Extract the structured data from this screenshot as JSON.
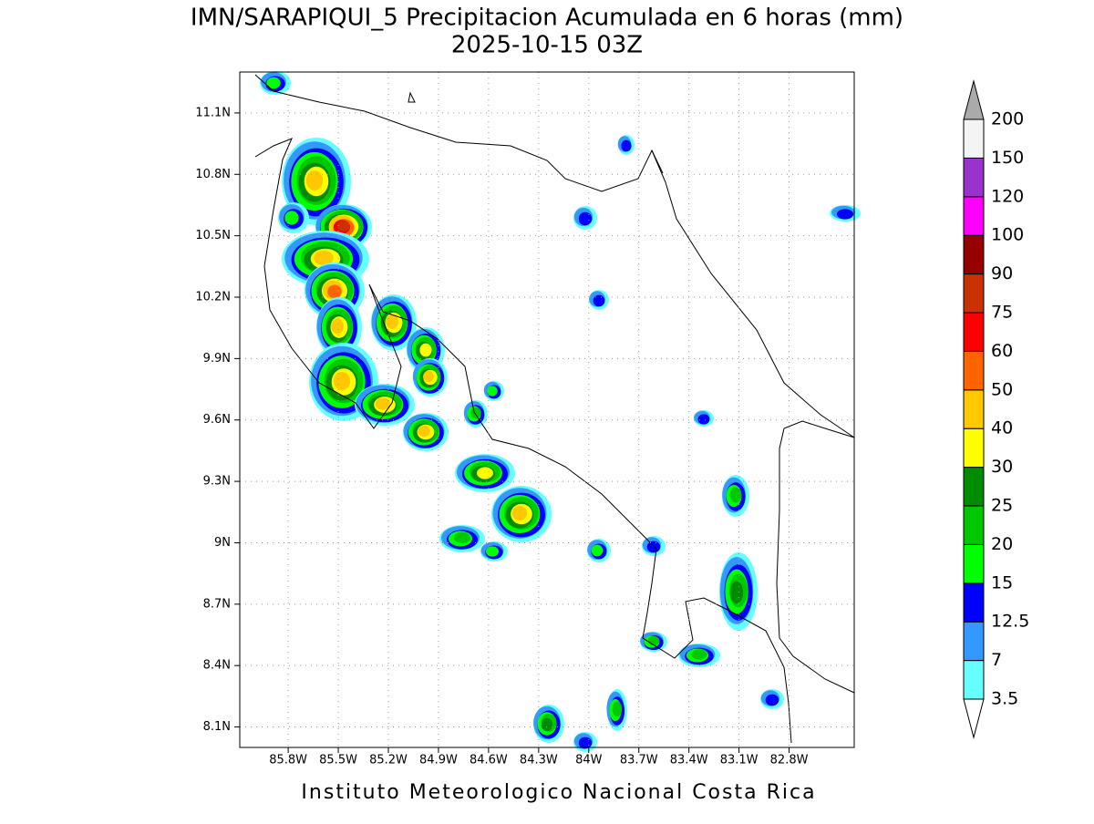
{
  "title": [
    "IMN/SARAPIQUI_5 Precipitacion Acumulada en 6 horas (mm)",
    "2025-10-15 03Z"
  ],
  "map": {
    "xlim": [
      -86.09,
      -82.41
    ],
    "ylim": [
      8.0,
      11.3
    ],
    "lon_ticks": [
      {
        "value": -85.8,
        "label": "85.8W"
      },
      {
        "value": -85.5,
        "label": "85.5W"
      },
      {
        "value": -85.2,
        "label": "85.2W"
      },
      {
        "value": -84.9,
        "label": "84.9W"
      },
      {
        "value": -84.6,
        "label": "84.6W"
      },
      {
        "value": -84.3,
        "label": "84.3W"
      },
      {
        "value": -84,
        "label": "84W"
      },
      {
        "value": -83.7,
        "label": "83.7W"
      },
      {
        "value": -83.4,
        "label": "83.4W"
      },
      {
        "value": -83.1,
        "label": "83.1W"
      },
      {
        "value": -82.8,
        "label": "82.8W"
      }
    ],
    "lat_ticks": [
      {
        "value": 8.1,
        "label": "8.1N"
      },
      {
        "value": 8.4,
        "label": "8.4N"
      },
      {
        "value": 8.7,
        "label": "8.7N"
      },
      {
        "value": 9,
        "label": "9N"
      },
      {
        "value": 9.3,
        "label": "9.3N"
      },
      {
        "value": 9.6,
        "label": "9.6N"
      },
      {
        "value": 9.9,
        "label": "9.9N"
      },
      {
        "value": 10.2,
        "label": "10.2N"
      },
      {
        "value": 10.5,
        "label": "10.5N"
      },
      {
        "value": 10.8,
        "label": "10.8N"
      },
      {
        "value": 11.1,
        "label": "11.1N"
      }
    ]
  },
  "colorbar": {
    "levels": [
      3.5,
      7,
      12.5,
      15,
      20,
      25,
      30,
      40,
      50,
      60,
      75,
      90,
      100,
      120,
      150,
      200
    ],
    "colors": [
      "#ffffff",
      "#66ffff",
      "#3399ff",
      "#0000ff",
      "#00ff00",
      "#00c800",
      "#008c00",
      "#ffff00",
      "#ffc800",
      "#ff6400",
      "#ff0000",
      "#c83200",
      "#960000",
      "#ff00ff",
      "#9933cc",
      "#f4f4f4",
      "#aaaaaa"
    ]
  },
  "footer": "Instituto Meteorologico Nacional Costa Rica"
}
